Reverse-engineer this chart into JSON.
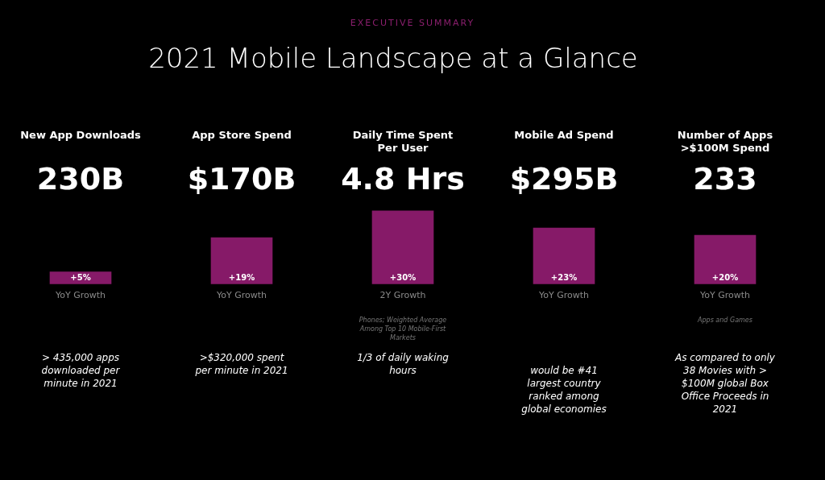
{
  "chart_data": {
    "type": "bar",
    "subtitle": "EXECUTIVE SUMMARY",
    "title": "2021 Mobile Landscape at a Glance",
    "categories": [
      "YoY Growth",
      "YoY Growth",
      "2Y Growth",
      "YoY Growth",
      "YoY Growth"
    ],
    "values": [
      5,
      19,
      30,
      23,
      20
    ],
    "color": "#861a68",
    "value_labels": [
      "+5%",
      "+19%",
      "+30%",
      "+23%",
      "+20%"
    ],
    "annotations": [
      "New App Downloads",
      "230B",
      "> 435,000 apps downloaded per minute in 2021",
      "App Store Spend",
      "$170B",
      ">$320,000 spent per minute in 2021",
      "Daily Time Spent Per User",
      "4.8 Hrs",
      "Phones; Weighted Average Among Top 10 Mobile-First Markets",
      "1/3 of daily waking hours",
      "Mobile Ad Spend",
      "$295B",
      "would be #41 largest country ranked among global economies",
      "Number of Apps >$100M Spend",
      "233",
      "Apps and Games",
      "As compared to only 38 Movies with > $100M global Box Office Proceeds in 2021"
    ],
    "legend": false
  }
}
